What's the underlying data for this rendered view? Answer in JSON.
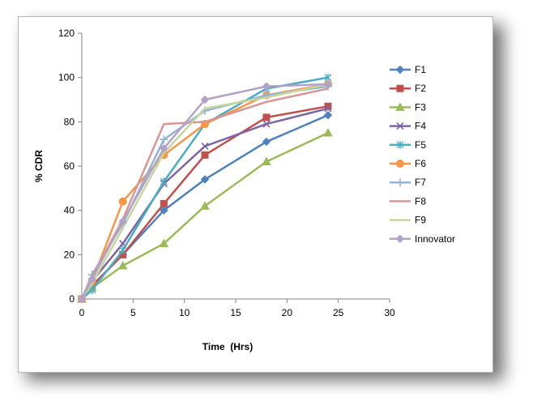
{
  "chart_data": {
    "type": "line",
    "xlabel": "Time  (Hrs)",
    "ylabel": "% CDR",
    "xlim": [
      0,
      30
    ],
    "ylim": [
      0,
      120
    ],
    "xticks": [
      0,
      5,
      10,
      15,
      20,
      25,
      30
    ],
    "yticks": [
      0,
      20,
      40,
      60,
      80,
      100,
      120
    ],
    "grid": false,
    "legend_position": "right",
    "x": [
      0,
      1,
      4,
      8,
      12,
      18,
      24
    ],
    "series": [
      {
        "name": "F1",
        "color": "#4F81BD",
        "marker": "diamond",
        "values": [
          0,
          6,
          20,
          40,
          54,
          71,
          83
        ]
      },
      {
        "name": "F2",
        "color": "#C0504D",
        "marker": "square",
        "values": [
          0,
          6,
          20,
          43,
          65,
          82,
          87
        ]
      },
      {
        "name": "F3",
        "color": "#9BBB59",
        "marker": "triangle",
        "values": [
          0,
          5,
          15,
          25,
          42,
          62,
          75
        ]
      },
      {
        "name": "F4",
        "color": "#8064A2",
        "marker": "x",
        "values": [
          0,
          8,
          25,
          52,
          69,
          79,
          86
        ]
      },
      {
        "name": "F5",
        "color": "#4BACC6",
        "marker": "star",
        "values": [
          0,
          4,
          22,
          53,
          79,
          95,
          100
        ]
      },
      {
        "name": "F6",
        "color": "#F79646",
        "marker": "circle",
        "values": [
          0,
          8,
          44,
          65,
          79,
          92,
          97
        ]
      },
      {
        "name": "F7",
        "color": "#95B3D7",
        "marker": "plus",
        "values": [
          0,
          11,
          34,
          72,
          85,
          92,
          96
        ]
      },
      {
        "name": "F8",
        "color": "#D99694",
        "marker": "none",
        "values": [
          0,
          10,
          36,
          79,
          80,
          89,
          95
        ]
      },
      {
        "name": "F9",
        "color": "#C3D69B",
        "marker": "none",
        "values": [
          0,
          7,
          32,
          66,
          86,
          91,
          97
        ]
      },
      {
        "name": "Innovator",
        "color": "#B3A2C7",
        "marker": "diamond",
        "values": [
          0,
          9,
          35,
          68,
          90,
          96,
          97
        ]
      }
    ]
  }
}
